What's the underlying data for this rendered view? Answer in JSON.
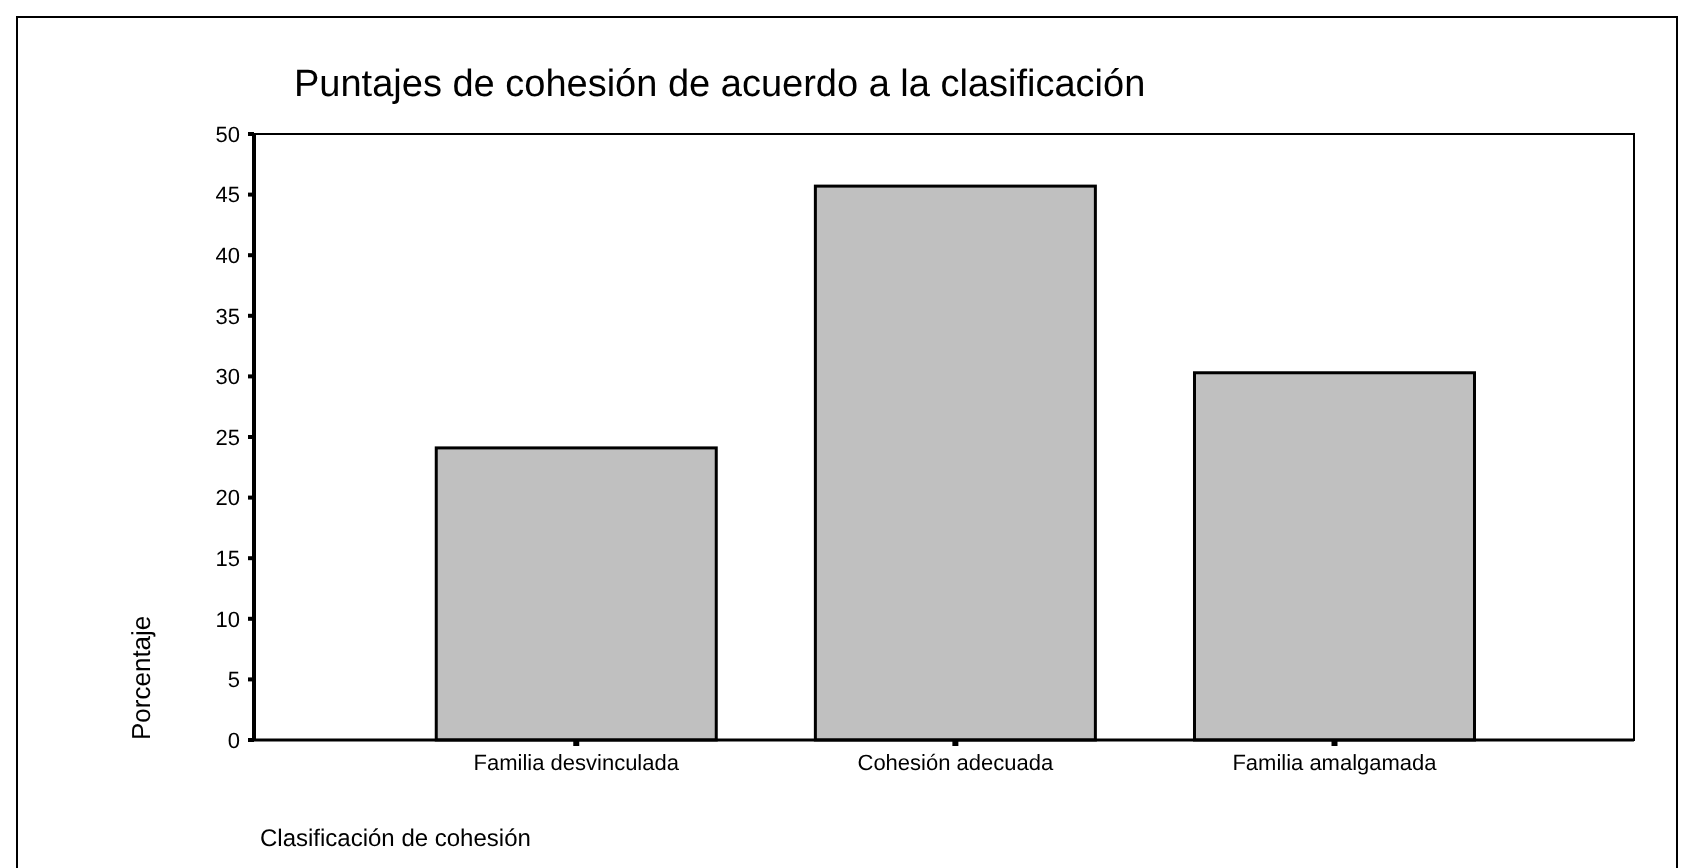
{
  "chart_data": {
    "type": "bar",
    "title": "Puntajes de cohesión de acuerdo a la clasificación",
    "xlabel": "Clasificación de cohesión",
    "ylabel": "Porcentaje",
    "categories": [
      "Familia desvinculada",
      "Cohesión adecuada",
      "Familia amalgamada"
    ],
    "values": [
      24.1,
      45.7,
      30.3
    ],
    "color": "#c0c0c0",
    "ylim": [
      0,
      50
    ],
    "yticks": [
      0,
      5,
      10,
      15,
      20,
      25,
      30,
      35,
      40,
      45,
      50
    ],
    "grid": false
  }
}
